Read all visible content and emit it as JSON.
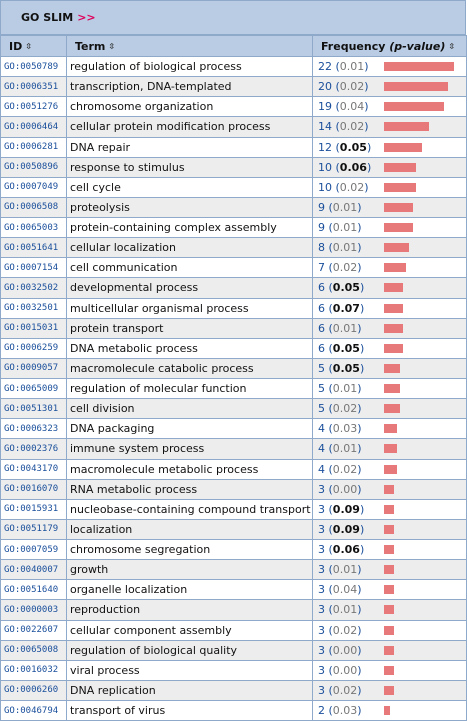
{
  "header": {
    "title": "GO SLIM",
    "arrows": ">>"
  },
  "columns": {
    "id": "ID",
    "term": "Term",
    "freq_label": "Frequency ",
    "pval_label": "(p-value)",
    "sort_glyph": "⇳"
  },
  "colors": {
    "header_bg": "#b9cce4",
    "bar": "#e8797b",
    "link": "#1a4f9b"
  },
  "max_count": 22,
  "rows": [
    {
      "id": "GO:0050789",
      "term": "regulation of biological process",
      "count": "22",
      "p": "0.01"
    },
    {
      "id": "GO:0006351",
      "term": "transcription, DNA-templated",
      "count": "20",
      "p": "0.02"
    },
    {
      "id": "GO:0051276",
      "term": "chromosome organization",
      "count": "19",
      "p": "0.04"
    },
    {
      "id": "GO:0006464",
      "term": "cellular protein modification process",
      "count": "14",
      "p": "0.02"
    },
    {
      "id": "GO:0006281",
      "term": "DNA repair",
      "count": "12",
      "p": "0.05"
    },
    {
      "id": "GO:0050896",
      "term": "response to stimulus",
      "count": "10",
      "p": "0.06"
    },
    {
      "id": "GO:0007049",
      "term": "cell cycle",
      "count": "10",
      "p": "0.02"
    },
    {
      "id": "GO:0006508",
      "term": "proteolysis",
      "count": "9",
      "p": "0.01"
    },
    {
      "id": "GO:0065003",
      "term": "protein-containing complex assembly",
      "count": "9",
      "p": "0.01"
    },
    {
      "id": "GO:0051641",
      "term": "cellular localization",
      "count": "8",
      "p": "0.01"
    },
    {
      "id": "GO:0007154",
      "term": "cell communication",
      "count": "7",
      "p": "0.02"
    },
    {
      "id": "GO:0032502",
      "term": "developmental process",
      "count": "6",
      "p": "0.05"
    },
    {
      "id": "GO:0032501",
      "term": "multicellular organismal process",
      "count": "6",
      "p": "0.07"
    },
    {
      "id": "GO:0015031",
      "term": "protein transport",
      "count": "6",
      "p": "0.01"
    },
    {
      "id": "GO:0006259",
      "term": "DNA metabolic process",
      "count": "6",
      "p": "0.05"
    },
    {
      "id": "GO:0009057",
      "term": "macromolecule catabolic process",
      "count": "5",
      "p": "0.05"
    },
    {
      "id": "GO:0065009",
      "term": "regulation of molecular function",
      "count": "5",
      "p": "0.01"
    },
    {
      "id": "GO:0051301",
      "term": "cell division",
      "count": "5",
      "p": "0.02"
    },
    {
      "id": "GO:0006323",
      "term": "DNA packaging",
      "count": "4",
      "p": "0.03"
    },
    {
      "id": "GO:0002376",
      "term": "immune system process",
      "count": "4",
      "p": "0.01"
    },
    {
      "id": "GO:0043170",
      "term": "macromolecule metabolic process",
      "count": "4",
      "p": "0.02"
    },
    {
      "id": "GO:0016070",
      "term": "RNA metabolic process",
      "count": "3",
      "p": "0.00"
    },
    {
      "id": "GO:0015931",
      "term": "nucleobase-containing compound transport",
      "count": "3",
      "p": "0.09"
    },
    {
      "id": "GO:0051179",
      "term": "localization",
      "count": "3",
      "p": "0.09"
    },
    {
      "id": "GO:0007059",
      "term": "chromosome segregation",
      "count": "3",
      "p": "0.06"
    },
    {
      "id": "GO:0040007",
      "term": "growth",
      "count": "3",
      "p": "0.01"
    },
    {
      "id": "GO:0051640",
      "term": "organelle localization",
      "count": "3",
      "p": "0.04"
    },
    {
      "id": "GO:0000003",
      "term": "reproduction",
      "count": "3",
      "p": "0.01"
    },
    {
      "id": "GO:0022607",
      "term": "cellular component assembly",
      "count": "3",
      "p": "0.02"
    },
    {
      "id": "GO:0065008",
      "term": "regulation of biological quality",
      "count": "3",
      "p": "0.00"
    },
    {
      "id": "GO:0016032",
      "term": "viral process",
      "count": "3",
      "p": "0.00"
    },
    {
      "id": "GO:0006260",
      "term": "DNA replication",
      "count": "3",
      "p": "0.02"
    },
    {
      "id": "GO:0046794",
      "term": "transport of virus",
      "count": "2",
      "p": "0.03"
    }
  ]
}
